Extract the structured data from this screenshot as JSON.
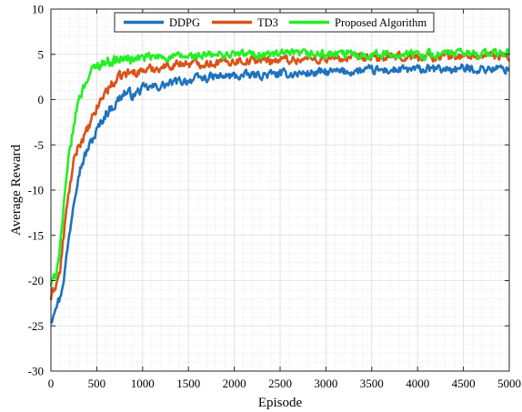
{
  "chart_data": {
    "type": "line",
    "title": "",
    "xlabel": "Episode",
    "ylabel": "Average Reward",
    "xlim": [
      0,
      5000
    ],
    "ylim": [
      -30,
      10
    ],
    "xticks": [
      0,
      500,
      1000,
      1500,
      2000,
      2500,
      3000,
      3500,
      4000,
      4500,
      5000
    ],
    "yticks": [
      -30,
      -25,
      -20,
      -15,
      -10,
      -5,
      0,
      5,
      10
    ],
    "grid": true,
    "minor_grid": true,
    "legend_position": "top-center",
    "series": [
      {
        "name": "DDPG",
        "color": "#1f72bd",
        "points": [
          [
            0,
            -24.5
          ],
          [
            50,
            -22.5
          ],
          [
            100,
            -22
          ],
          [
            150,
            -19
          ],
          [
            200,
            -15
          ],
          [
            250,
            -11
          ],
          [
            300,
            -8
          ],
          [
            400,
            -5.5
          ],
          [
            500,
            -3.5
          ],
          [
            600,
            -1.5
          ],
          [
            700,
            -0.5
          ],
          [
            800,
            0.8
          ],
          [
            900,
            0.5
          ],
          [
            1000,
            1.2
          ],
          [
            1200,
            1.5
          ],
          [
            1400,
            2
          ],
          [
            1600,
            2.3
          ],
          [
            1800,
            2.5
          ],
          [
            2000,
            2.6
          ],
          [
            2500,
            2.8
          ],
          [
            3000,
            3
          ],
          [
            3500,
            3.2
          ],
          [
            4000,
            3.3
          ],
          [
            4500,
            3.4
          ],
          [
            5000,
            3.4
          ]
        ]
      },
      {
        "name": "TD3",
        "color": "#d95319",
        "points": [
          [
            0,
            -22
          ],
          [
            50,
            -20.5
          ],
          [
            100,
            -19
          ],
          [
            150,
            -14
          ],
          [
            200,
            -10
          ],
          [
            250,
            -7
          ],
          [
            300,
            -5
          ],
          [
            400,
            -3.5
          ],
          [
            500,
            -1
          ],
          [
            600,
            1
          ],
          [
            700,
            2
          ],
          [
            800,
            2.8
          ],
          [
            900,
            3
          ],
          [
            1000,
            3.2
          ],
          [
            1200,
            3.6
          ],
          [
            1400,
            4
          ],
          [
            1600,
            4
          ],
          [
            1800,
            4.1
          ],
          [
            2000,
            4.3
          ],
          [
            2500,
            4.4
          ],
          [
            3000,
            4.5
          ],
          [
            3500,
            4.6
          ],
          [
            4000,
            4.7
          ],
          [
            4500,
            4.8
          ],
          [
            5000,
            4.8
          ]
        ]
      },
      {
        "name": "Proposed Algorithm",
        "color": "#22f022",
        "points": [
          [
            0,
            -20.5
          ],
          [
            50,
            -19.5
          ],
          [
            100,
            -16
          ],
          [
            150,
            -11
          ],
          [
            200,
            -6
          ],
          [
            250,
            -3
          ],
          [
            300,
            0
          ],
          [
            400,
            2.5
          ],
          [
            500,
            3.8
          ],
          [
            600,
            4.2
          ],
          [
            700,
            4.3
          ],
          [
            800,
            4.5
          ],
          [
            900,
            4.5
          ],
          [
            1000,
            4.6
          ],
          [
            1200,
            4.7
          ],
          [
            1400,
            4.7
          ],
          [
            1600,
            4.8
          ],
          [
            1800,
            4.9
          ],
          [
            2000,
            5
          ],
          [
            2500,
            5
          ],
          [
            3000,
            5
          ],
          [
            3500,
            5
          ],
          [
            4000,
            5
          ],
          [
            4500,
            5.1
          ],
          [
            5000,
            5.1
          ]
        ]
      }
    ]
  }
}
